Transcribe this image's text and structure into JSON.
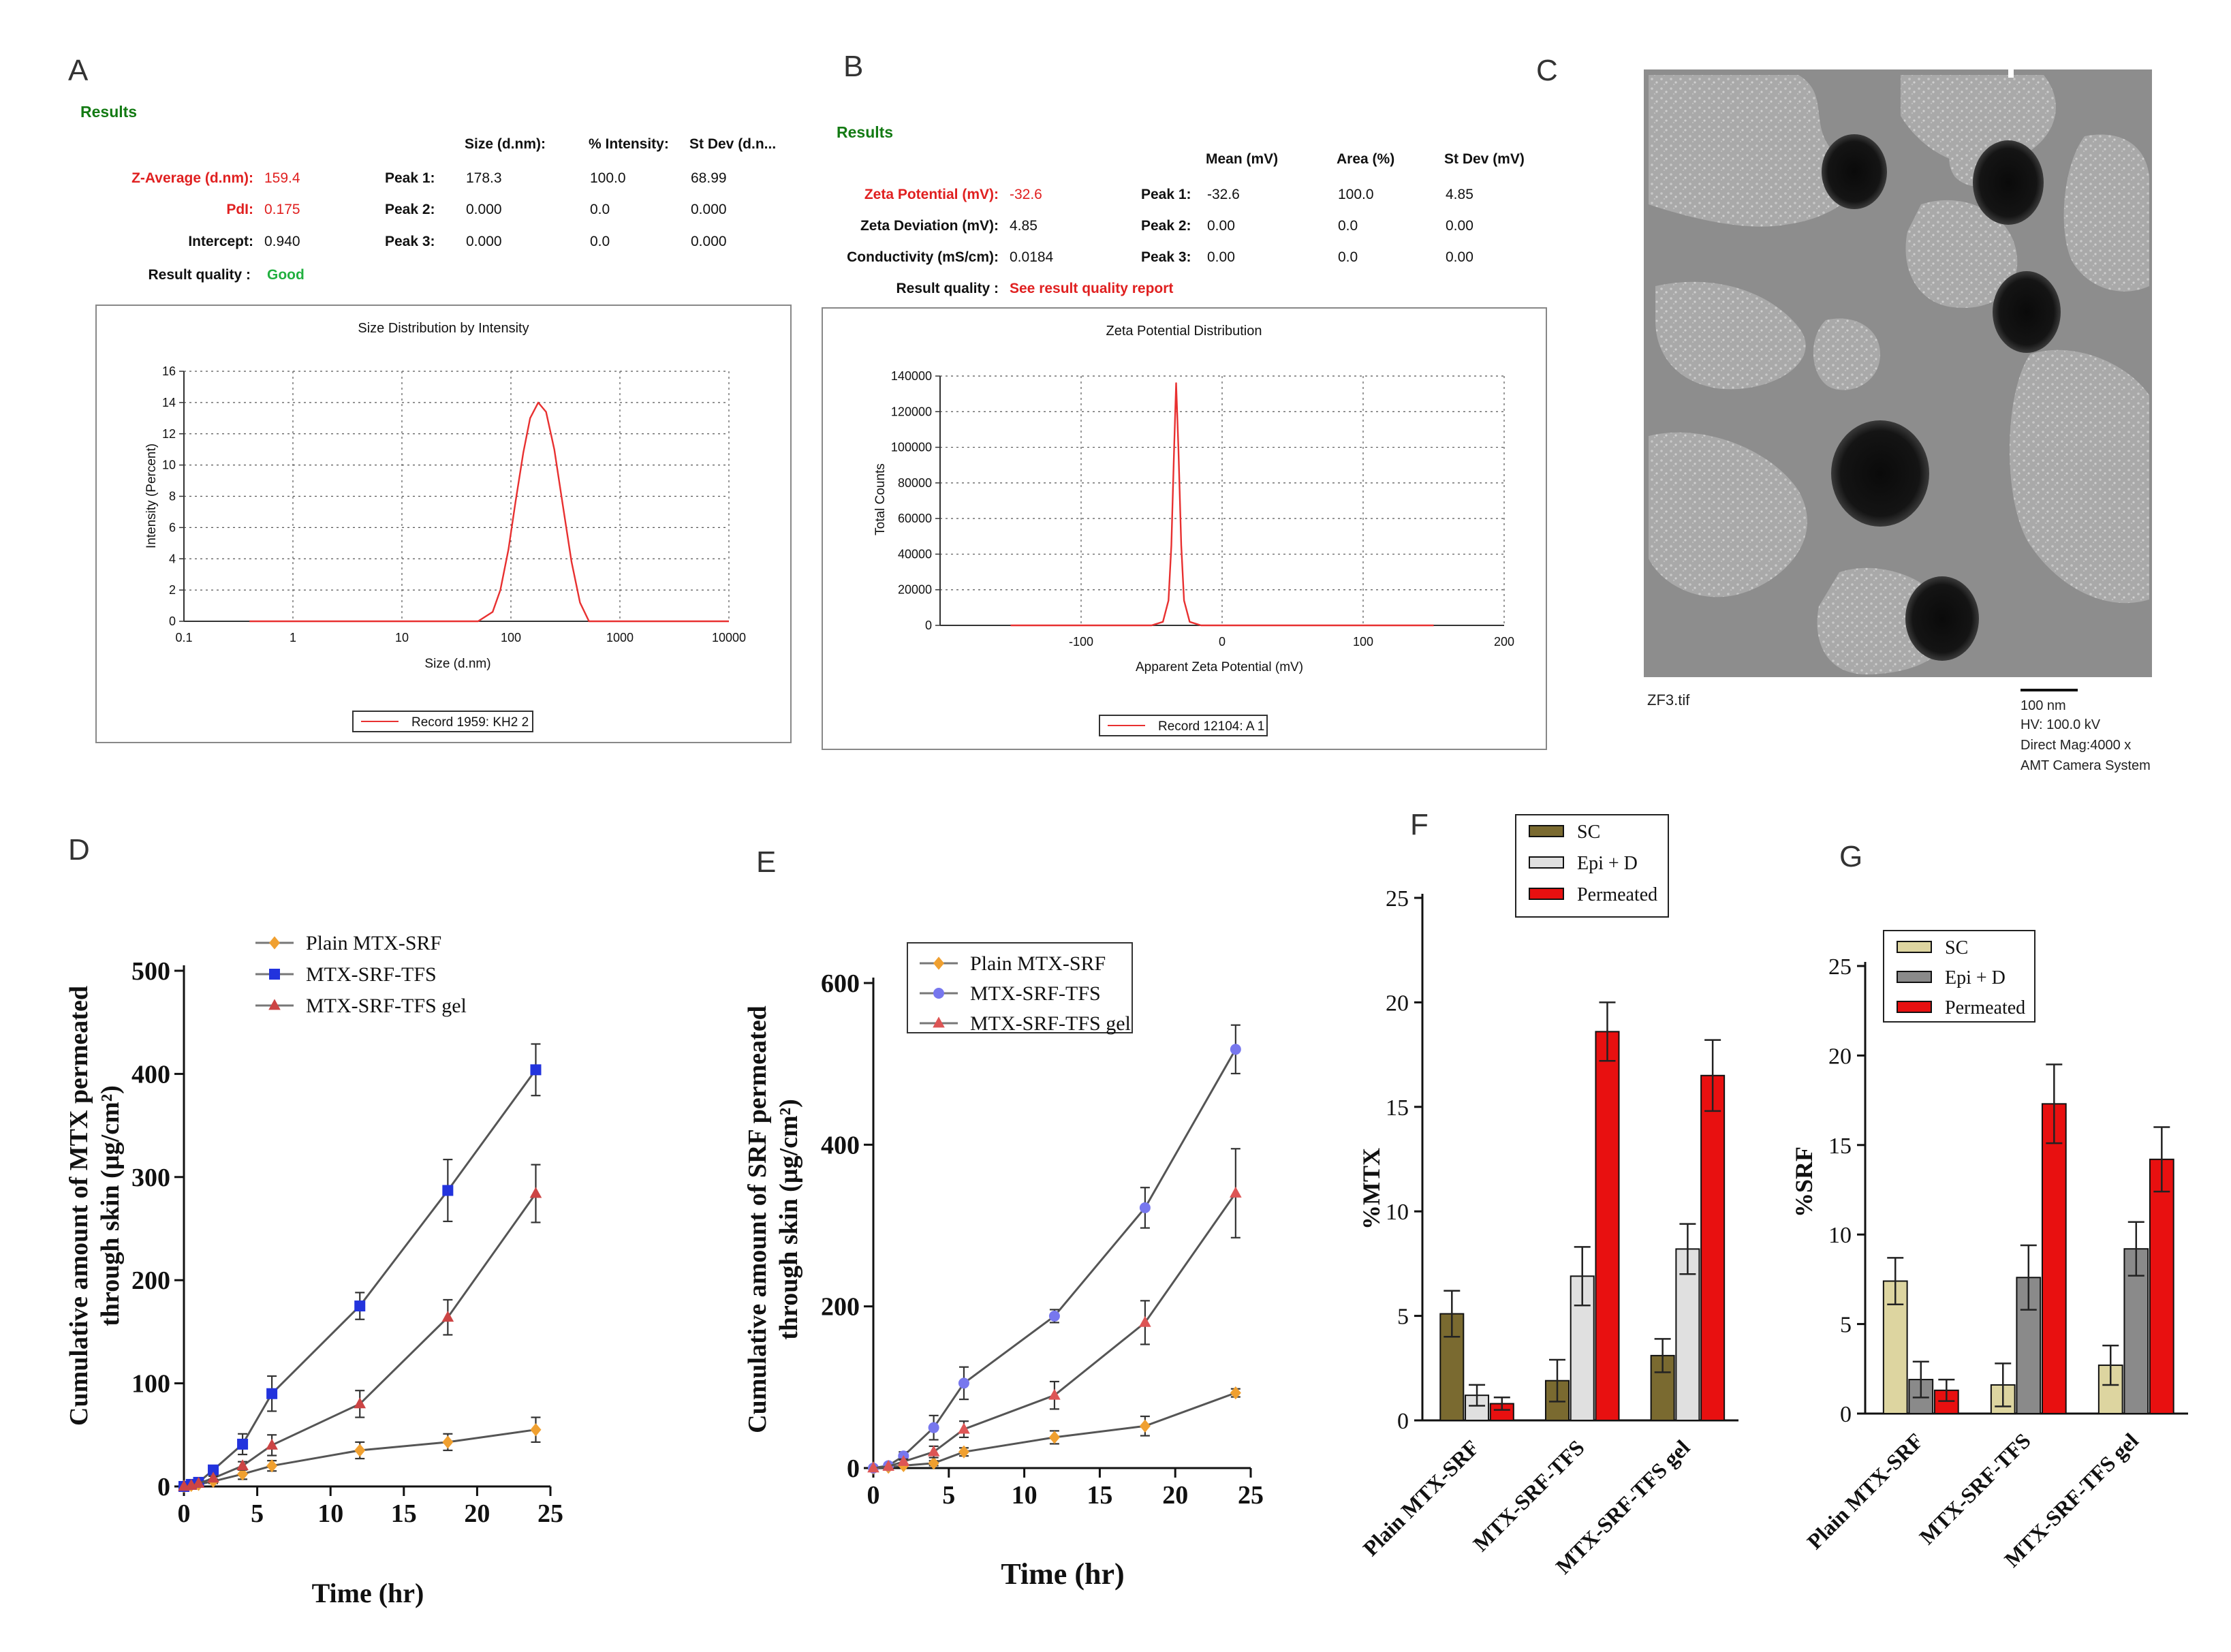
{
  "panel_letters": [
    "A",
    "B",
    "C",
    "D",
    "E",
    "F",
    "G"
  ],
  "panelA": {
    "results_title": "Results",
    "rows": [
      {
        "label": "Z-Average (d.nm):",
        "value": "159.4",
        "highlight": true
      },
      {
        "label": "PdI:",
        "value": "0.175",
        "highlight": true
      },
      {
        "label": "Intercept:",
        "value": "0.940",
        "highlight": false
      }
    ],
    "quality_label": "Result quality :",
    "quality_value": "Good",
    "peak_headers": [
      "Size (d.nm):",
      "% Intensity:",
      "St Dev (d.n..."
    ],
    "peaks": [
      {
        "label": "Peak 1:",
        "values": [
          "178.3",
          "100.0",
          "68.99"
        ]
      },
      {
        "label": "Peak 2:",
        "values": [
          "0.000",
          "0.0",
          "0.000"
        ]
      },
      {
        "label": "Peak 3:",
        "values": [
          "0.000",
          "0.0",
          "0.000"
        ]
      }
    ],
    "chart_title": "Size Distribution by Intensity",
    "xlabel": "Size (d.nm)",
    "ylabel": "Intensity (Percent)",
    "xticks": [
      "0.1",
      "1",
      "10",
      "100",
      "1000",
      "10000"
    ],
    "yticks": [
      "0",
      "2",
      "4",
      "6",
      "8",
      "10",
      "12",
      "14",
      "16"
    ],
    "legend": "Record 1959: KH2 2"
  },
  "panelB": {
    "results_title": "Results",
    "rows": [
      {
        "label": "Zeta Potential (mV):",
        "value": "-32.6",
        "highlight": true
      },
      {
        "label": "Zeta Deviation (mV):",
        "value": "4.85",
        "highlight": false
      },
      {
        "label": "Conductivity (mS/cm):",
        "value": "0.0184",
        "highlight": false
      }
    ],
    "quality_label": "Result quality :",
    "quality_value": "See result quality report",
    "peak_headers": [
      "Mean (mV)",
      "Area (%)",
      "St Dev (mV)"
    ],
    "peaks": [
      {
        "label": "Peak 1:",
        "values": [
          "-32.6",
          "100.0",
          "4.85"
        ]
      },
      {
        "label": "Peak 2:",
        "values": [
          "0.00",
          "0.0",
          "0.00"
        ]
      },
      {
        "label": "Peak 3:",
        "values": [
          "0.00",
          "0.0",
          "0.00"
        ]
      }
    ],
    "chart_title": "Zeta Potential Distribution",
    "xlabel": "Apparent Zeta Potential (mV)",
    "ylabel": "Total Counts",
    "xticks": [
      "-100",
      "0",
      "100",
      "200"
    ],
    "yticks": [
      "0",
      "20000",
      "40000",
      "60000",
      "80000",
      "100000",
      "120000",
      "140000"
    ],
    "legend": "Record 12104: A 1"
  },
  "panelC": {
    "filename": "ZF3.tif",
    "scale_label": "100 nm",
    "info": [
      "HV: 100.0 kV",
      "Direct Mag:4000 x",
      "AMT Camera System"
    ]
  },
  "chart_data": [
    {
      "id": "A",
      "type": "line",
      "title": "Size Distribution by Intensity",
      "xlabel": "Size (d.nm)",
      "ylabel": "Intensity (Percent)",
      "xscale": "log",
      "xlim": [
        0.1,
        10000
      ],
      "ylim": [
        0,
        16
      ],
      "grid": true,
      "legend_position": "bottom",
      "series": [
        {
          "name": "Record 1959: KH2 2",
          "color": "#e83030",
          "x": [
            0.4,
            50,
            68,
            80,
            95,
            110,
            130,
            150,
            178,
            210,
            250,
            300,
            360,
            430,
            520,
            10000
          ],
          "y": [
            0,
            0,
            0.6,
            2.0,
            4.6,
            7.6,
            10.8,
            13.0,
            14.0,
            13.4,
            11.0,
            7.4,
            3.8,
            1.2,
            0,
            0
          ]
        }
      ]
    },
    {
      "id": "B",
      "type": "line",
      "title": "Zeta Potential Distribution",
      "xlabel": "Apparent Zeta Potential (mV)",
      "ylabel": "Total Counts",
      "xlim": [
        -200,
        200
      ],
      "ylim": [
        0,
        140000
      ],
      "grid": true,
      "legend_position": "bottom",
      "series": [
        {
          "name": "Record 12104: A 1",
          "color": "#e83030",
          "x": [
            -150,
            -50,
            -42,
            -38,
            -36,
            -34,
            -32.6,
            -31,
            -29,
            -27,
            -23,
            -15,
            150
          ],
          "y": [
            0,
            0,
            2000,
            14000,
            45000,
            100000,
            136000,
            100000,
            45000,
            14000,
            2000,
            0,
            0
          ]
        }
      ]
    },
    {
      "id": "D",
      "type": "line",
      "xlabel": "Time (hr)",
      "ylabel_line1": "Cumulative amount of MTX permeated",
      "ylabel_line2": "through skin (µg/cm²)",
      "xlim": [
        0,
        25
      ],
      "ylim": [
        0,
        500
      ],
      "xticks": [
        "0",
        "5",
        "10",
        "15",
        "20",
        "25"
      ],
      "yticks": [
        "0",
        "100",
        "200",
        "300",
        "400",
        "500"
      ],
      "legend_position": "top",
      "series": [
        {
          "name": "Plain MTX-SRF",
          "color": "#f0a030",
          "marker": "diamond",
          "x": [
            0,
            0.5,
            1,
            2,
            4,
            6,
            12,
            18,
            24
          ],
          "y": [
            0,
            1,
            2,
            5,
            12,
            20,
            35,
            43,
            55
          ],
          "err": [
            0,
            0,
            0,
            2,
            5,
            5,
            8,
            8,
            12
          ]
        },
        {
          "name": "MTX-SRF-TFS",
          "color": "#2233dd",
          "marker": "square",
          "x": [
            0,
            0.5,
            1,
            2,
            4,
            6,
            12,
            18,
            24
          ],
          "y": [
            0,
            2,
            4,
            16,
            41,
            90,
            175,
            287,
            404
          ],
          "err": [
            0,
            0,
            2,
            4,
            10,
            17,
            13,
            30,
            25
          ]
        },
        {
          "name": "MTX-SRF-TFS gel",
          "color": "#cc4444",
          "marker": "triangle",
          "x": [
            0,
            0.5,
            1,
            2,
            4,
            6,
            12,
            18,
            24
          ],
          "y": [
            0,
            1,
            3,
            8,
            20,
            40,
            80,
            164,
            284
          ],
          "err": [
            0,
            0,
            0,
            2,
            4,
            10,
            13,
            17,
            28
          ]
        }
      ]
    },
    {
      "id": "E",
      "type": "line",
      "xlabel": "Time (hr)",
      "ylabel_line1": "Cumulative amount of SRF permeated",
      "ylabel_line2": "through skin (µg/cm²)",
      "xlim": [
        0,
        25
      ],
      "ylim": [
        0,
        600
      ],
      "xticks": [
        "0",
        "5",
        "10",
        "15",
        "20",
        "25"
      ],
      "yticks": [
        "0",
        "200",
        "400",
        "600"
      ],
      "legend_position": "top",
      "series": [
        {
          "name": "Plain MTX-SRF",
          "color": "#f0a030",
          "marker": "diamond",
          "x": [
            0,
            1,
            2,
            4,
            6,
            12,
            18,
            24
          ],
          "y": [
            0,
            1,
            3,
            6,
            20,
            38,
            52,
            93
          ],
          "err": [
            0,
            0,
            0,
            3,
            5,
            8,
            12,
            5
          ]
        },
        {
          "name": "MTX-SRF-TFS",
          "color": "#7777ee",
          "marker": "circle",
          "x": [
            0,
            1,
            2,
            4,
            6,
            12,
            18,
            24
          ],
          "y": [
            0,
            3,
            15,
            50,
            105,
            188,
            322,
            518
          ],
          "err": [
            0,
            0,
            5,
            15,
            20,
            8,
            25,
            30
          ]
        },
        {
          "name": "MTX-SRF-TFS gel",
          "color": "#dd5555",
          "marker": "triangle",
          "x": [
            0,
            1,
            2,
            4,
            6,
            12,
            18,
            24
          ],
          "y": [
            0,
            2,
            8,
            20,
            48,
            90,
            180,
            340
          ],
          "err": [
            0,
            0,
            3,
            7,
            10,
            17,
            27,
            55
          ]
        }
      ]
    },
    {
      "id": "F",
      "type": "bar",
      "ylabel": "%MTX",
      "ylim": [
        0,
        25
      ],
      "yticks": [
        "0",
        "5",
        "10",
        "15",
        "20",
        "25"
      ],
      "categories": [
        "Plain MTX-SRF",
        "MTX-SRF-TFS",
        "MTX-SRF-TFS gel"
      ],
      "legend_position": "top",
      "series": [
        {
          "name": "SC",
          "color": "#7a6a30",
          "values": [
            5.1,
            1.9,
            3.1
          ],
          "err": [
            1.1,
            1.0,
            0.8
          ]
        },
        {
          "name": "Epi + D",
          "color": "#e0e0e0",
          "values": [
            1.2,
            6.9,
            8.2
          ],
          "err": [
            0.5,
            1.4,
            1.2
          ]
        },
        {
          "name": "Permeated",
          "color": "#e81010",
          "values": [
            0.8,
            18.6,
            16.5
          ],
          "err": [
            0.3,
            1.4,
            1.7
          ]
        }
      ]
    },
    {
      "id": "G",
      "type": "bar",
      "ylabel": "%SRF",
      "ylim": [
        0,
        25
      ],
      "yticks": [
        "0",
        "5",
        "10",
        "15",
        "20",
        "25"
      ],
      "categories": [
        "Plain MTX-SRF",
        "MTX-SRF-TFS",
        "MTX-SRF-TFS gel"
      ],
      "legend_position": "top",
      "series": [
        {
          "name": "SC",
          "color": "#ddd5a0",
          "values": [
            7.4,
            1.6,
            2.7
          ],
          "err": [
            1.3,
            1.2,
            1.1
          ]
        },
        {
          "name": "Epi + D",
          "color": "#8a8a8a",
          "values": [
            1.9,
            7.6,
            9.2
          ],
          "err": [
            1.0,
            1.8,
            1.5
          ]
        },
        {
          "name": "Permeated",
          "color": "#e81010",
          "values": [
            1.3,
            17.3,
            14.2
          ],
          "err": [
            0.6,
            2.2,
            1.8
          ]
        }
      ]
    }
  ]
}
